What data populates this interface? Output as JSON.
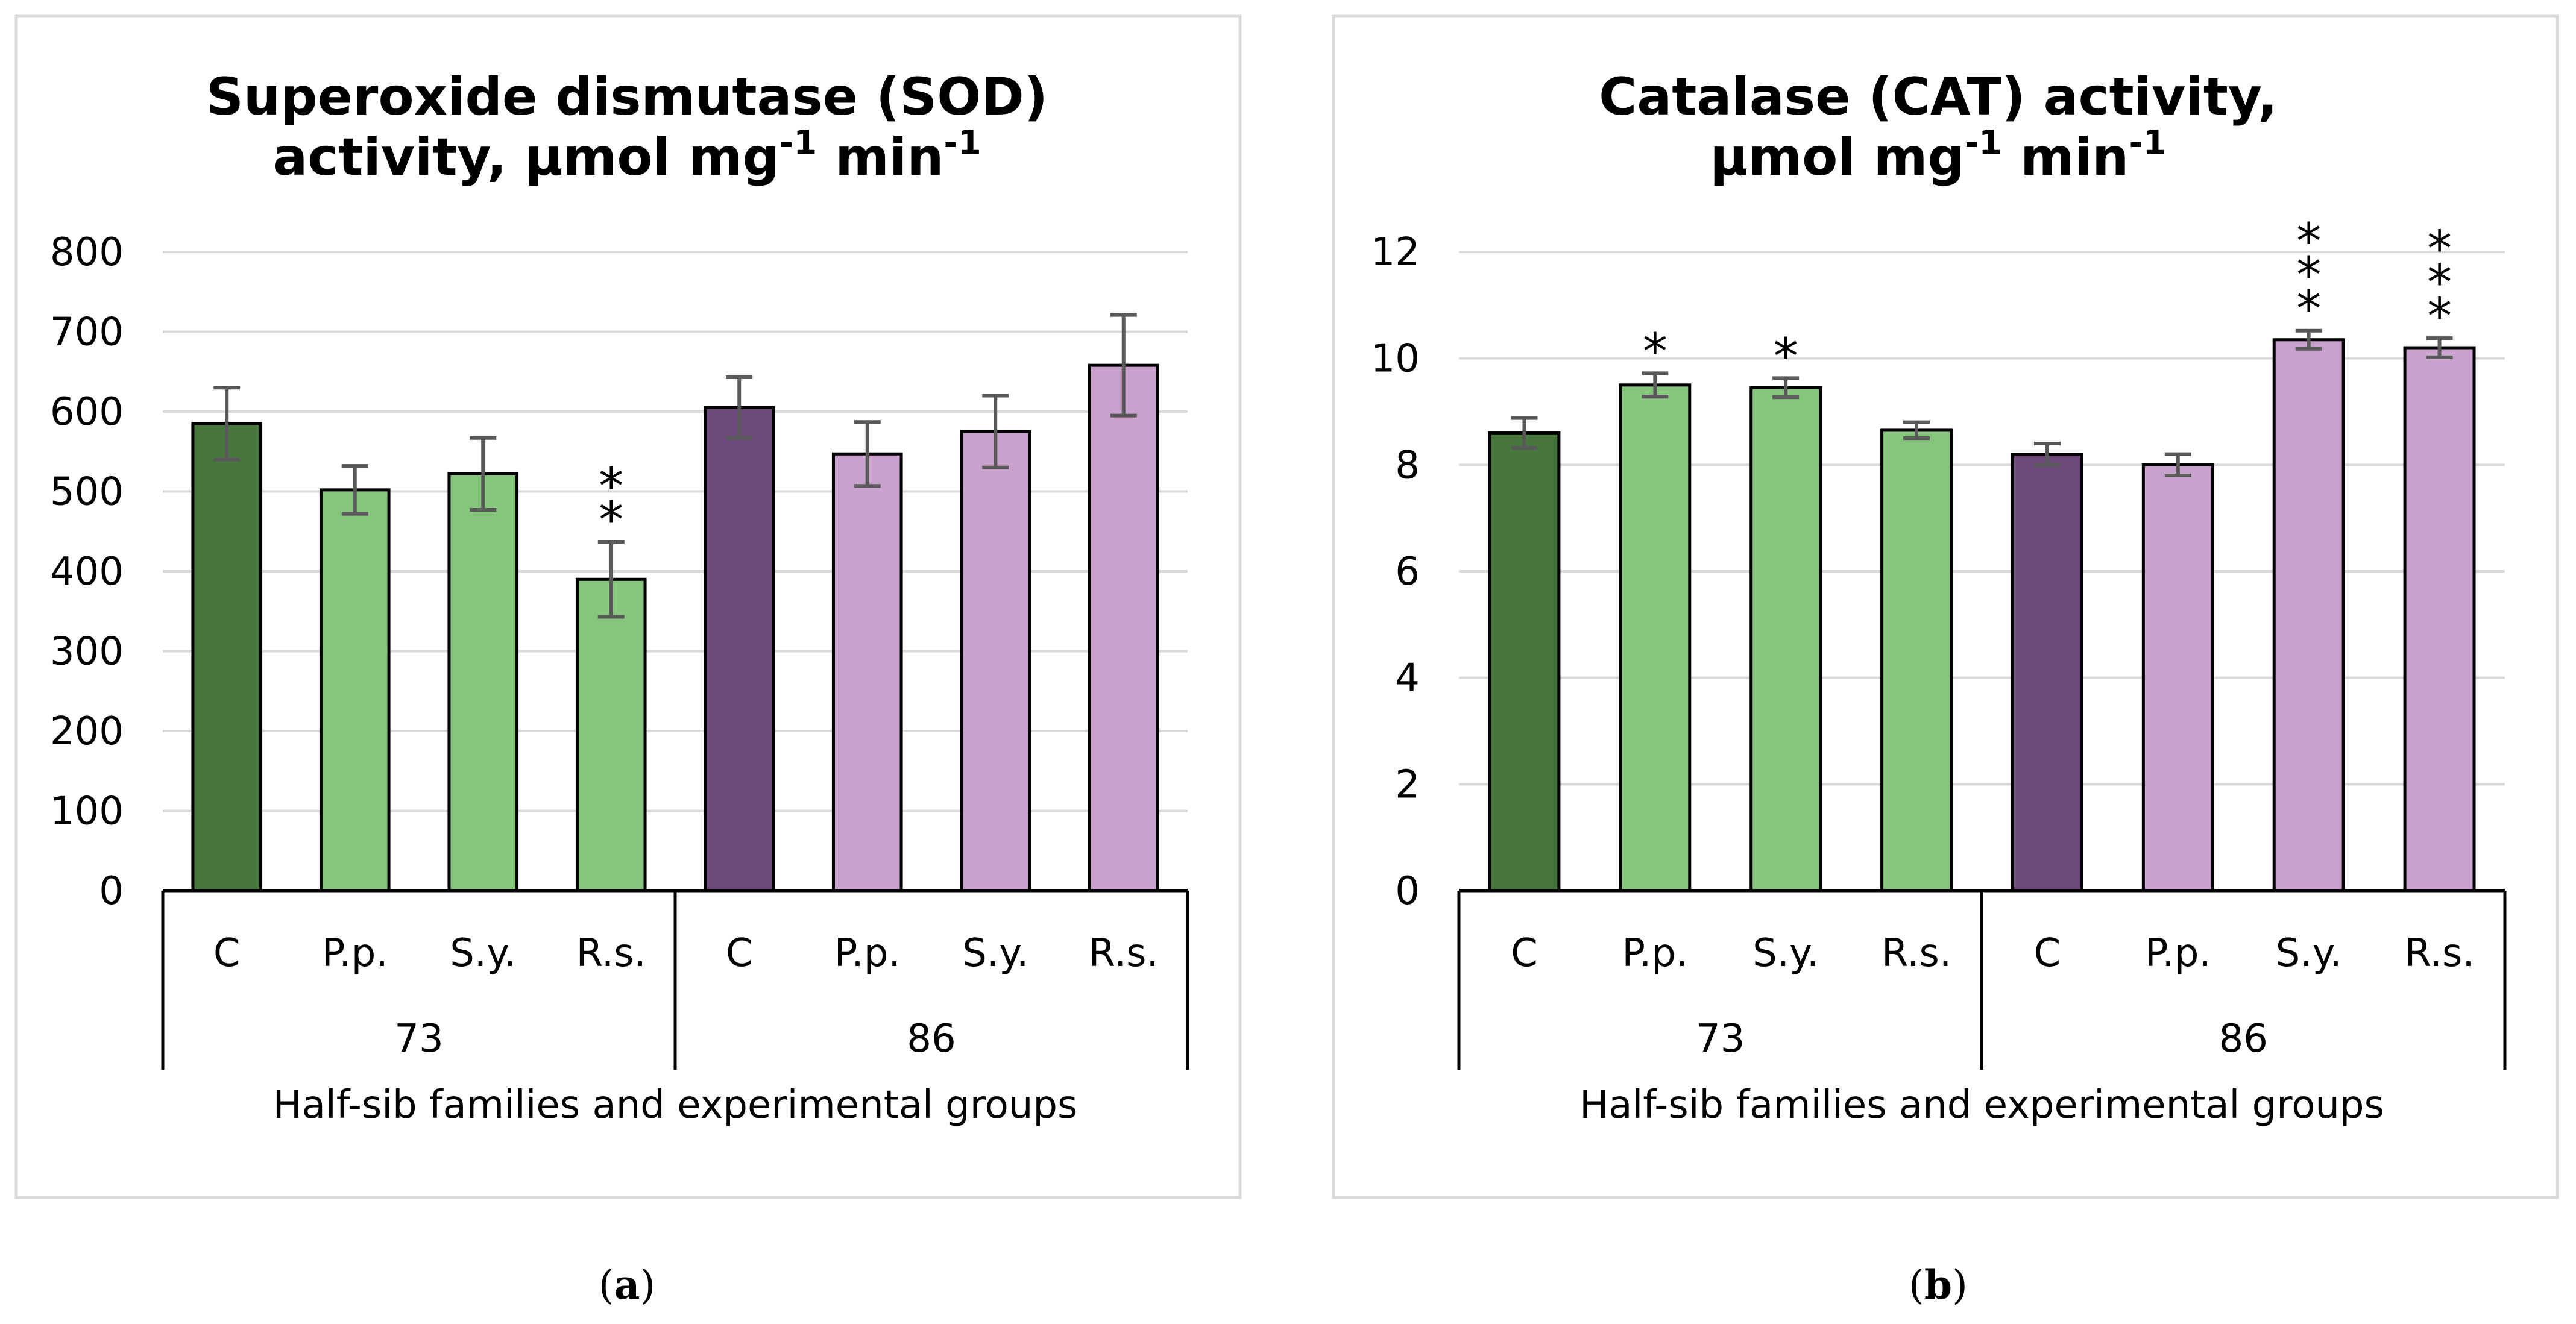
{
  "colors": {
    "green_dark": "#48773E",
    "green_light": "#85C57C",
    "purple_dark": "#6F4A7D",
    "purple_light": "#C8A1CC",
    "error_bar": "#595959",
    "gridline": "#D9D9D9",
    "panel_border": "#D9D9D9"
  },
  "chart_data": [
    {
      "type": "bar",
      "panel_label": "a",
      "title_line1": "Superoxide dismutase (SOD)",
      "title_line2_prefix": "activity, µmol mg",
      "title_line2_sup1": "-1",
      "title_line2_mid": " min",
      "title_line2_sup2": "-1",
      "xlabel": "Half-sib families and experimental groups",
      "ylim": [
        0,
        800
      ],
      "yticks": [
        0,
        100,
        200,
        300,
        400,
        500,
        600,
        700,
        800
      ],
      "groups": [
        {
          "label": "73",
          "categories": [
            "C",
            "P.p.",
            "S.y.",
            "R.s."
          ]
        },
        {
          "label": "86",
          "categories": [
            "C",
            "P.p.",
            "S.y.",
            "R.s."
          ]
        }
      ],
      "values": [
        585,
        502,
        522,
        390,
        605,
        547,
        575,
        658
      ],
      "errors": [
        45,
        30,
        45,
        47,
        38,
        40,
        45,
        63
      ],
      "colors": [
        "green_dark",
        "green_light",
        "green_light",
        "green_light",
        "purple_dark",
        "purple_light",
        "purple_light",
        "purple_light"
      ],
      "significance": [
        "",
        "",
        "",
        "**",
        "",
        "",
        "",
        ""
      ]
    },
    {
      "type": "bar",
      "panel_label": "b",
      "title_line1": "Catalase (CAT) activity,",
      "title_line2_prefix": "µmol mg",
      "title_line2_sup1": "-1",
      "title_line2_mid": " min",
      "title_line2_sup2": "-1",
      "xlabel": "Half-sib families and experimental groups",
      "ylim": [
        0,
        12
      ],
      "yticks": [
        0,
        2,
        4,
        6,
        8,
        10,
        12
      ],
      "groups": [
        {
          "label": "73",
          "categories": [
            "C",
            "P.p.",
            "S.y.",
            "R.s."
          ]
        },
        {
          "label": "86",
          "categories": [
            "C",
            "P.p.",
            "S.y.",
            "R.s."
          ]
        }
      ],
      "values": [
        8.6,
        9.5,
        9.45,
        8.65,
        8.2,
        8.0,
        10.35,
        10.2
      ],
      "errors": [
        0.28,
        0.22,
        0.18,
        0.15,
        0.2,
        0.2,
        0.17,
        0.18
      ],
      "colors": [
        "green_dark",
        "green_light",
        "green_light",
        "green_light",
        "purple_dark",
        "purple_light",
        "purple_light",
        "purple_light"
      ],
      "significance": [
        "",
        "*",
        "*",
        "",
        "",
        "",
        "***",
        "***"
      ]
    }
  ]
}
